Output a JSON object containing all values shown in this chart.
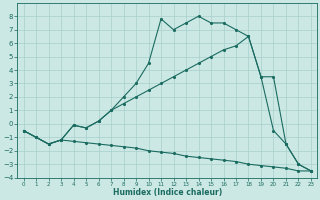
{
  "xlabel": "Humidex (Indice chaleur)",
  "xlim": [
    -0.5,
    23.5
  ],
  "ylim": [
    -4,
    9
  ],
  "bg_color": "#cce8e4",
  "grid_color": "#a8d0cc",
  "line_color": "#1a6b60",
  "curve1_x": [
    0,
    1,
    2,
    3,
    4,
    5,
    6,
    7,
    8,
    9,
    10,
    11,
    12,
    13,
    14,
    15,
    16,
    17,
    18,
    19,
    20,
    21,
    22,
    23
  ],
  "curve1_y": [
    -0.5,
    -1.0,
    -1.5,
    -1.2,
    -1.3,
    -1.4,
    -1.5,
    -1.6,
    -1.7,
    -1.8,
    -2.0,
    -2.1,
    -2.2,
    -2.4,
    -2.5,
    -2.6,
    -2.7,
    -2.8,
    -3.0,
    -3.1,
    -3.2,
    -3.3,
    -3.5,
    -3.5
  ],
  "curve2_x": [
    0,
    1,
    2,
    3,
    4,
    5,
    6,
    7,
    8,
    9,
    10,
    11,
    12,
    13,
    14,
    15,
    16,
    17,
    18,
    19,
    20,
    21,
    22,
    23
  ],
  "curve2_y": [
    -0.5,
    -1.0,
    -1.5,
    -1.2,
    -0.1,
    -0.3,
    0.2,
    1.0,
    2.0,
    3.0,
    4.5,
    7.8,
    7.0,
    7.5,
    8.0,
    7.5,
    7.5,
    7.0,
    6.5,
    3.5,
    3.5,
    -1.5,
    -3.0,
    -3.5
  ],
  "curve3_x": [
    0,
    1,
    2,
    3,
    4,
    5,
    6,
    7,
    8,
    9,
    10,
    11,
    12,
    13,
    14,
    15,
    16,
    17,
    18,
    19,
    20,
    21,
    22,
    23
  ],
  "curve3_y": [
    -0.5,
    -1.0,
    -1.5,
    -1.2,
    -0.1,
    -0.3,
    0.2,
    1.0,
    1.5,
    2.0,
    2.5,
    3.0,
    3.5,
    4.0,
    4.5,
    5.0,
    5.5,
    5.8,
    6.5,
    3.5,
    -0.5,
    -1.5,
    -3.0,
    -3.5
  ],
  "xticks": [
    0,
    1,
    2,
    3,
    4,
    5,
    6,
    7,
    8,
    9,
    10,
    11,
    12,
    13,
    14,
    15,
    16,
    17,
    18,
    19,
    20,
    21,
    22,
    23
  ],
  "yticks": [
    -4,
    -3,
    -2,
    -1,
    0,
    1,
    2,
    3,
    4,
    5,
    6,
    7,
    8
  ]
}
